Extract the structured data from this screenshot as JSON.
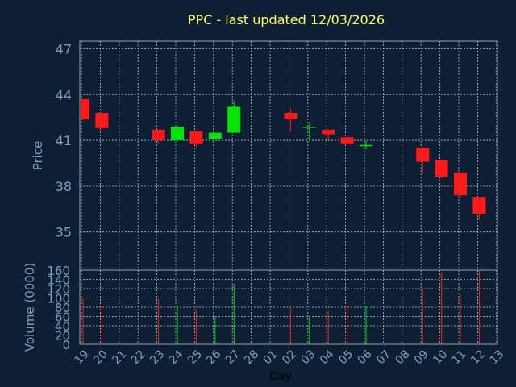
{
  "chart_data": {
    "type": "candlestick",
    "title": "PPC - last updated 12/03/2026",
    "xlabel": "Day",
    "price_axis": {
      "label": "Price",
      "ylim": [
        32.5,
        47.5
      ],
      "ticks": [
        35,
        38,
        41,
        44,
        47
      ],
      "grid": true
    },
    "volume_axis": {
      "label": "Volume (0000)",
      "ylim": [
        0,
        160
      ],
      "ticks": [
        0,
        20,
        40,
        60,
        80,
        100,
        120,
        140,
        160
      ],
      "grid": true
    },
    "x_ticks": [
      "19",
      "20",
      "21",
      "22",
      "23",
      "24",
      "25",
      "26",
      "27",
      "28",
      "01",
      "02",
      "03",
      "04",
      "05",
      "06",
      "07",
      "08",
      "09",
      "10",
      "11",
      "12",
      "13"
    ],
    "candles": [
      {
        "day": "19",
        "open": 43.7,
        "high": 43.7,
        "low": 42.3,
        "close": 42.4,
        "volume": 100
      },
      {
        "day": "20",
        "open": 42.8,
        "high": 42.8,
        "low": 41.6,
        "close": 41.8,
        "volume": 85
      },
      {
        "day": "23",
        "open": 41.7,
        "high": 41.7,
        "low": 40.8,
        "close": 41.0,
        "volume": 98
      },
      {
        "day": "24",
        "open": 41.0,
        "high": 41.9,
        "low": 41.0,
        "close": 41.9,
        "volume": 82
      },
      {
        "day": "25",
        "open": 41.6,
        "high": 41.6,
        "low": 40.5,
        "close": 40.8,
        "volume": 75
      },
      {
        "day": "26",
        "open": 41.1,
        "high": 41.5,
        "low": 41.1,
        "close": 41.5,
        "volume": 60
      },
      {
        "day": "27",
        "open": 41.5,
        "high": 43.6,
        "low": 41.5,
        "close": 43.2,
        "volume": 130
      },
      {
        "day": "02",
        "open": 42.8,
        "high": 43.1,
        "low": 41.6,
        "close": 42.4,
        "volume": 78
      },
      {
        "day": "03",
        "open": 41.9,
        "high": 42.2,
        "low": 41.0,
        "close": 41.9,
        "volume": 60
      },
      {
        "day": "04",
        "open": 41.7,
        "high": 41.7,
        "low": 41.0,
        "close": 41.4,
        "volume": 72
      },
      {
        "day": "05",
        "open": 41.2,
        "high": 41.2,
        "low": 40.7,
        "close": 40.8,
        "volume": 82
      },
      {
        "day": "06",
        "open": 40.7,
        "high": 41.0,
        "low": 40.4,
        "close": 40.7,
        "volume": 82
      },
      {
        "day": "09",
        "open": 40.5,
        "high": 40.5,
        "low": 38.8,
        "close": 39.6,
        "volume": 122
      },
      {
        "day": "10",
        "open": 39.7,
        "high": 39.7,
        "low": 38.5,
        "close": 38.6,
        "volume": 155
      },
      {
        "day": "11",
        "open": 38.9,
        "high": 38.9,
        "low": 37.3,
        "close": 37.4,
        "volume": 108
      },
      {
        "day": "12",
        "open": 37.3,
        "high": 37.3,
        "low": 35.8,
        "close": 36.2,
        "volume": 160
      }
    ],
    "colors": {
      "background": "#0f1f33",
      "plot_border": "#8aa0b8",
      "grid": "#b8c4d0",
      "title": "#ffff66",
      "tick_label": "#7f9fc0",
      "axis_label": "#7f9fc0",
      "xlabel": "#000000",
      "up": "#00e600",
      "down": "#ff1a1a"
    }
  }
}
